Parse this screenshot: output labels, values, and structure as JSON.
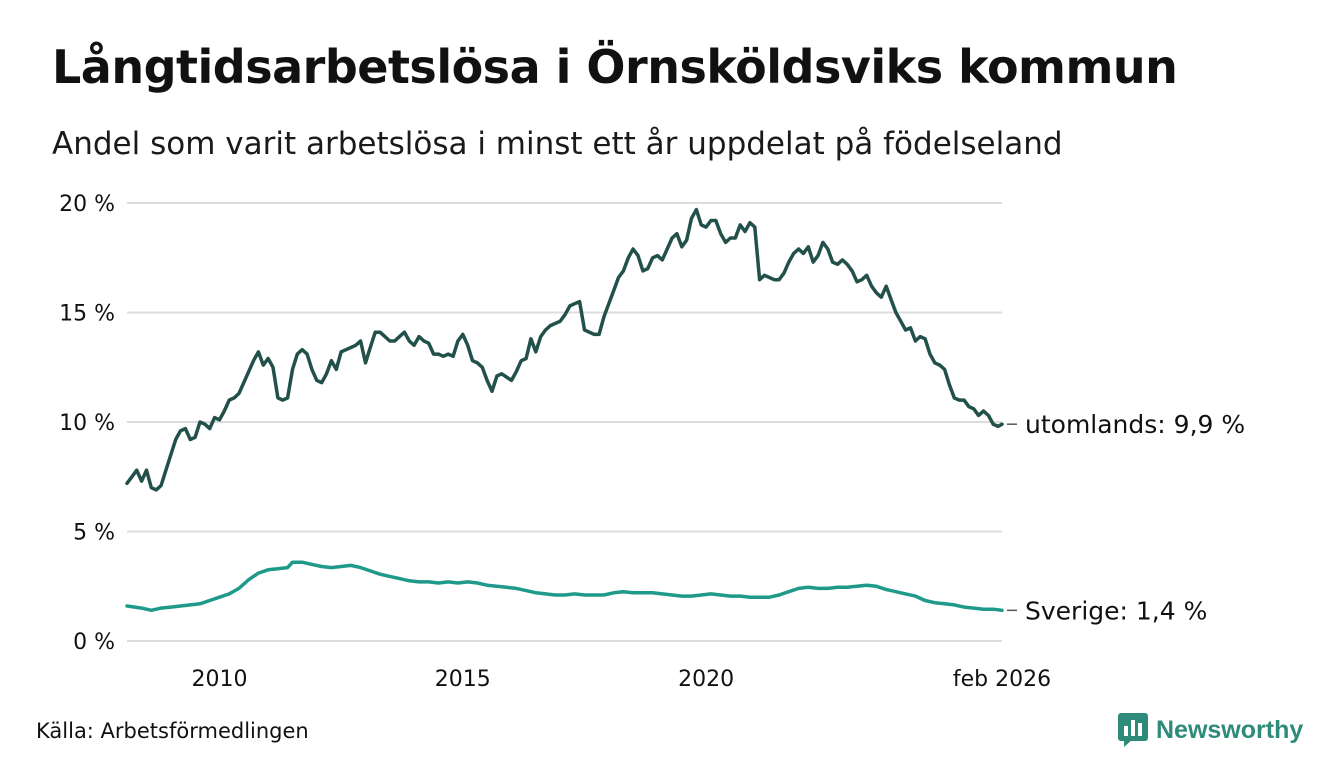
{
  "title": "Långtidsarbetslösa i Örnsköldsviks kommun",
  "subtitle": "Andel som varit arbetslösa i minst ett år uppdelat på födelseland",
  "source": "Källa: Arbetsförmedlingen",
  "brand": "Newsworthy",
  "colors": {
    "utomlands": "#22504a",
    "sverige": "#1f9a8a",
    "grid": "#dcdcdc",
    "brand": "#2e8b7a"
  },
  "chart_data": {
    "type": "line",
    "title": "Långtidsarbetslösa i Örnsköldsviks kommun",
    "xlabel": "",
    "ylabel": "",
    "xlim": [
      2008.1,
      2026.08
    ],
    "ylim": [
      0,
      20
    ],
    "yticks": [
      0,
      5,
      10,
      15,
      20
    ],
    "ytick_labels": [
      "0 %",
      "5 %",
      "10 %",
      "15 %",
      "20 %"
    ],
    "xticks": [
      2010,
      2015,
      2020,
      2026.08
    ],
    "xtick_labels": [
      "2010",
      "2015",
      "2020",
      "feb 2026"
    ],
    "grid": true,
    "series": [
      {
        "name": "utomlands",
        "label": "utomlands: 9,9 %",
        "color": "#22504a",
        "points": [
          [
            2008.1,
            7.2
          ],
          [
            2008.2,
            7.5
          ],
          [
            2008.3,
            7.8
          ],
          [
            2008.4,
            7.3
          ],
          [
            2008.5,
            7.8
          ],
          [
            2008.6,
            7.0
          ],
          [
            2008.7,
            6.9
          ],
          [
            2008.8,
            7.1
          ],
          [
            2008.9,
            7.8
          ],
          [
            2009.0,
            8.5
          ],
          [
            2009.1,
            9.2
          ],
          [
            2009.2,
            9.6
          ],
          [
            2009.3,
            9.7
          ],
          [
            2009.4,
            9.2
          ],
          [
            2009.5,
            9.3
          ],
          [
            2009.6,
            10.0
          ],
          [
            2009.7,
            9.9
          ],
          [
            2009.8,
            9.7
          ],
          [
            2009.9,
            10.2
          ],
          [
            2010.0,
            10.1
          ],
          [
            2010.1,
            10.5
          ],
          [
            2010.2,
            11.0
          ],
          [
            2010.3,
            11.1
          ],
          [
            2010.4,
            11.3
          ],
          [
            2010.5,
            11.8
          ],
          [
            2010.6,
            12.3
          ],
          [
            2010.7,
            12.8
          ],
          [
            2010.8,
            13.2
          ],
          [
            2010.9,
            12.6
          ],
          [
            2011.0,
            12.9
          ],
          [
            2011.1,
            12.5
          ],
          [
            2011.2,
            11.1
          ],
          [
            2011.3,
            11.0
          ],
          [
            2011.4,
            11.1
          ],
          [
            2011.5,
            12.4
          ],
          [
            2011.6,
            13.1
          ],
          [
            2011.7,
            13.3
          ],
          [
            2011.8,
            13.1
          ],
          [
            2011.9,
            12.4
          ],
          [
            2012.0,
            11.9
          ],
          [
            2012.1,
            11.8
          ],
          [
            2012.2,
            12.2
          ],
          [
            2012.3,
            12.8
          ],
          [
            2012.4,
            12.4
          ],
          [
            2012.5,
            13.2
          ],
          [
            2012.6,
            13.3
          ],
          [
            2012.7,
            13.4
          ],
          [
            2012.8,
            13.5
          ],
          [
            2012.9,
            13.7
          ],
          [
            2013.0,
            12.7
          ],
          [
            2013.1,
            13.4
          ],
          [
            2013.2,
            14.1
          ],
          [
            2013.3,
            14.1
          ],
          [
            2013.4,
            13.9
          ],
          [
            2013.5,
            13.7
          ],
          [
            2013.6,
            13.7
          ],
          [
            2013.7,
            13.9
          ],
          [
            2013.8,
            14.1
          ],
          [
            2013.9,
            13.7
          ],
          [
            2014.0,
            13.5
          ],
          [
            2014.1,
            13.9
          ],
          [
            2014.2,
            13.7
          ],
          [
            2014.3,
            13.6
          ],
          [
            2014.4,
            13.1
          ],
          [
            2014.5,
            13.1
          ],
          [
            2014.6,
            13.0
          ],
          [
            2014.7,
            13.1
          ],
          [
            2014.8,
            13.0
          ],
          [
            2014.9,
            13.7
          ],
          [
            2015.0,
            14.0
          ],
          [
            2015.1,
            13.5
          ],
          [
            2015.2,
            12.8
          ],
          [
            2015.3,
            12.7
          ],
          [
            2015.4,
            12.5
          ],
          [
            2015.5,
            11.9
          ],
          [
            2015.6,
            11.4
          ],
          [
            2015.7,
            12.1
          ],
          [
            2015.8,
            12.2
          ],
          [
            2016.0,
            11.9
          ],
          [
            2016.1,
            12.3
          ],
          [
            2016.2,
            12.8
          ],
          [
            2016.3,
            12.9
          ],
          [
            2016.4,
            13.8
          ],
          [
            2016.5,
            13.2
          ],
          [
            2016.6,
            13.9
          ],
          [
            2016.7,
            14.2
          ],
          [
            2016.8,
            14.4
          ],
          [
            2016.9,
            14.5
          ],
          [
            2017.0,
            14.6
          ],
          [
            2017.1,
            14.9
          ],
          [
            2017.2,
            15.3
          ],
          [
            2017.3,
            15.4
          ],
          [
            2017.4,
            15.5
          ],
          [
            2017.5,
            14.2
          ],
          [
            2017.6,
            14.1
          ],
          [
            2017.7,
            14.0
          ],
          [
            2017.8,
            14.0
          ],
          [
            2017.9,
            14.8
          ],
          [
            2018.0,
            15.4
          ],
          [
            2018.1,
            16.0
          ],
          [
            2018.2,
            16.6
          ],
          [
            2018.3,
            16.9
          ],
          [
            2018.4,
            17.5
          ],
          [
            2018.5,
            17.9
          ],
          [
            2018.6,
            17.6
          ],
          [
            2018.7,
            16.9
          ],
          [
            2018.8,
            17.0
          ],
          [
            2018.9,
            17.5
          ],
          [
            2019.0,
            17.6
          ],
          [
            2019.1,
            17.4
          ],
          [
            2019.2,
            17.9
          ],
          [
            2019.3,
            18.4
          ],
          [
            2019.4,
            18.6
          ],
          [
            2019.5,
            18.0
          ],
          [
            2019.6,
            18.3
          ],
          [
            2019.7,
            19.3
          ],
          [
            2019.8,
            19.7
          ],
          [
            2019.9,
            19.0
          ],
          [
            2020.0,
            18.9
          ],
          [
            2020.1,
            19.2
          ],
          [
            2020.2,
            19.2
          ],
          [
            2020.3,
            18.6
          ],
          [
            2020.4,
            18.2
          ],
          [
            2020.5,
            18.4
          ],
          [
            2020.6,
            18.4
          ],
          [
            2020.7,
            19.0
          ],
          [
            2020.8,
            18.7
          ],
          [
            2020.9,
            19.1
          ],
          [
            2021.0,
            18.9
          ],
          [
            2021.1,
            16.5
          ],
          [
            2021.2,
            16.7
          ],
          [
            2021.3,
            16.6
          ],
          [
            2021.4,
            16.5
          ],
          [
            2021.5,
            16.5
          ],
          [
            2021.6,
            16.8
          ],
          [
            2021.7,
            17.3
          ],
          [
            2021.8,
            17.7
          ],
          [
            2021.9,
            17.9
          ],
          [
            2022.0,
            17.7
          ],
          [
            2022.1,
            18.0
          ],
          [
            2022.2,
            17.3
          ],
          [
            2022.3,
            17.6
          ],
          [
            2022.4,
            18.2
          ],
          [
            2022.5,
            17.9
          ],
          [
            2022.6,
            17.3
          ],
          [
            2022.7,
            17.2
          ],
          [
            2022.8,
            17.4
          ],
          [
            2022.9,
            17.2
          ],
          [
            2023.0,
            16.9
          ],
          [
            2023.1,
            16.4
          ],
          [
            2023.2,
            16.5
          ],
          [
            2023.3,
            16.7
          ],
          [
            2023.4,
            16.2
          ],
          [
            2023.5,
            15.9
          ],
          [
            2023.6,
            15.7
          ],
          [
            2023.7,
            16.2
          ],
          [
            2023.8,
            15.6
          ],
          [
            2023.9,
            15.0
          ],
          [
            2024.0,
            14.6
          ],
          [
            2024.1,
            14.2
          ],
          [
            2024.2,
            14.3
          ],
          [
            2024.3,
            13.7
          ],
          [
            2024.4,
            13.9
          ],
          [
            2024.5,
            13.8
          ],
          [
            2024.6,
            13.1
          ],
          [
            2024.7,
            12.7
          ],
          [
            2024.8,
            12.6
          ],
          [
            2024.9,
            12.4
          ],
          [
            2025.0,
            11.7
          ],
          [
            2025.1,
            11.1
          ],
          [
            2025.2,
            11.0
          ],
          [
            2025.3,
            11.0
          ],
          [
            2025.4,
            10.7
          ],
          [
            2025.5,
            10.6
          ],
          [
            2025.6,
            10.3
          ],
          [
            2025.7,
            10.5
          ],
          [
            2025.8,
            10.3
          ],
          [
            2025.9,
            9.9
          ],
          [
            2026.0,
            9.8
          ],
          [
            2026.08,
            9.9
          ]
        ]
      },
      {
        "name": "Sverige",
        "label": "Sverige: 1,4 %",
        "color": "#1f9a8a",
        "points": [
          [
            2008.1,
            1.6
          ],
          [
            2008.4,
            1.5
          ],
          [
            2008.6,
            1.4
          ],
          [
            2008.8,
            1.5
          ],
          [
            2009.0,
            1.55
          ],
          [
            2009.2,
            1.6
          ],
          [
            2009.4,
            1.65
          ],
          [
            2009.6,
            1.7
          ],
          [
            2009.8,
            1.85
          ],
          [
            2010.0,
            2.0
          ],
          [
            2010.2,
            2.15
          ],
          [
            2010.4,
            2.4
          ],
          [
            2010.6,
            2.8
          ],
          [
            2010.8,
            3.1
          ],
          [
            2011.0,
            3.25
          ],
          [
            2011.2,
            3.3
          ],
          [
            2011.4,
            3.35
          ],
          [
            2011.5,
            3.6
          ],
          [
            2011.7,
            3.6
          ],
          [
            2011.9,
            3.5
          ],
          [
            2012.1,
            3.4
          ],
          [
            2012.3,
            3.35
          ],
          [
            2012.5,
            3.4
          ],
          [
            2012.7,
            3.45
          ],
          [
            2012.9,
            3.35
          ],
          [
            2013.1,
            3.2
          ],
          [
            2013.3,
            3.05
          ],
          [
            2013.5,
            2.95
          ],
          [
            2013.7,
            2.85
          ],
          [
            2013.9,
            2.75
          ],
          [
            2014.1,
            2.7
          ],
          [
            2014.3,
            2.7
          ],
          [
            2014.5,
            2.65
          ],
          [
            2014.7,
            2.7
          ],
          [
            2014.9,
            2.65
          ],
          [
            2015.1,
            2.7
          ],
          [
            2015.3,
            2.65
          ],
          [
            2015.5,
            2.55
          ],
          [
            2015.7,
            2.5
          ],
          [
            2015.9,
            2.45
          ],
          [
            2016.1,
            2.4
          ],
          [
            2016.3,
            2.3
          ],
          [
            2016.5,
            2.2
          ],
          [
            2016.7,
            2.15
          ],
          [
            2016.9,
            2.1
          ],
          [
            2017.1,
            2.1
          ],
          [
            2017.3,
            2.15
          ],
          [
            2017.5,
            2.1
          ],
          [
            2017.7,
            2.1
          ],
          [
            2017.9,
            2.1
          ],
          [
            2018.1,
            2.2
          ],
          [
            2018.3,
            2.25
          ],
          [
            2018.5,
            2.2
          ],
          [
            2018.7,
            2.2
          ],
          [
            2018.9,
            2.2
          ],
          [
            2019.1,
            2.15
          ],
          [
            2019.3,
            2.1
          ],
          [
            2019.5,
            2.05
          ],
          [
            2019.7,
            2.05
          ],
          [
            2019.9,
            2.1
          ],
          [
            2020.1,
            2.15
          ],
          [
            2020.3,
            2.1
          ],
          [
            2020.5,
            2.05
          ],
          [
            2020.7,
            2.05
          ],
          [
            2020.9,
            2.0
          ],
          [
            2021.1,
            2.0
          ],
          [
            2021.3,
            2.0
          ],
          [
            2021.5,
            2.1
          ],
          [
            2021.7,
            2.25
          ],
          [
            2021.9,
            2.4
          ],
          [
            2022.1,
            2.45
          ],
          [
            2022.3,
            2.4
          ],
          [
            2022.5,
            2.4
          ],
          [
            2022.7,
            2.45
          ],
          [
            2022.9,
            2.45
          ],
          [
            2023.1,
            2.5
          ],
          [
            2023.3,
            2.55
          ],
          [
            2023.5,
            2.5
          ],
          [
            2023.7,
            2.35
          ],
          [
            2023.9,
            2.25
          ],
          [
            2024.1,
            2.15
          ],
          [
            2024.3,
            2.05
          ],
          [
            2024.5,
            1.85
          ],
          [
            2024.7,
            1.75
          ],
          [
            2024.9,
            1.7
          ],
          [
            2025.1,
            1.65
          ],
          [
            2025.3,
            1.55
          ],
          [
            2025.5,
            1.5
          ],
          [
            2025.7,
            1.45
          ],
          [
            2025.9,
            1.45
          ],
          [
            2026.08,
            1.4
          ]
        ]
      }
    ]
  }
}
